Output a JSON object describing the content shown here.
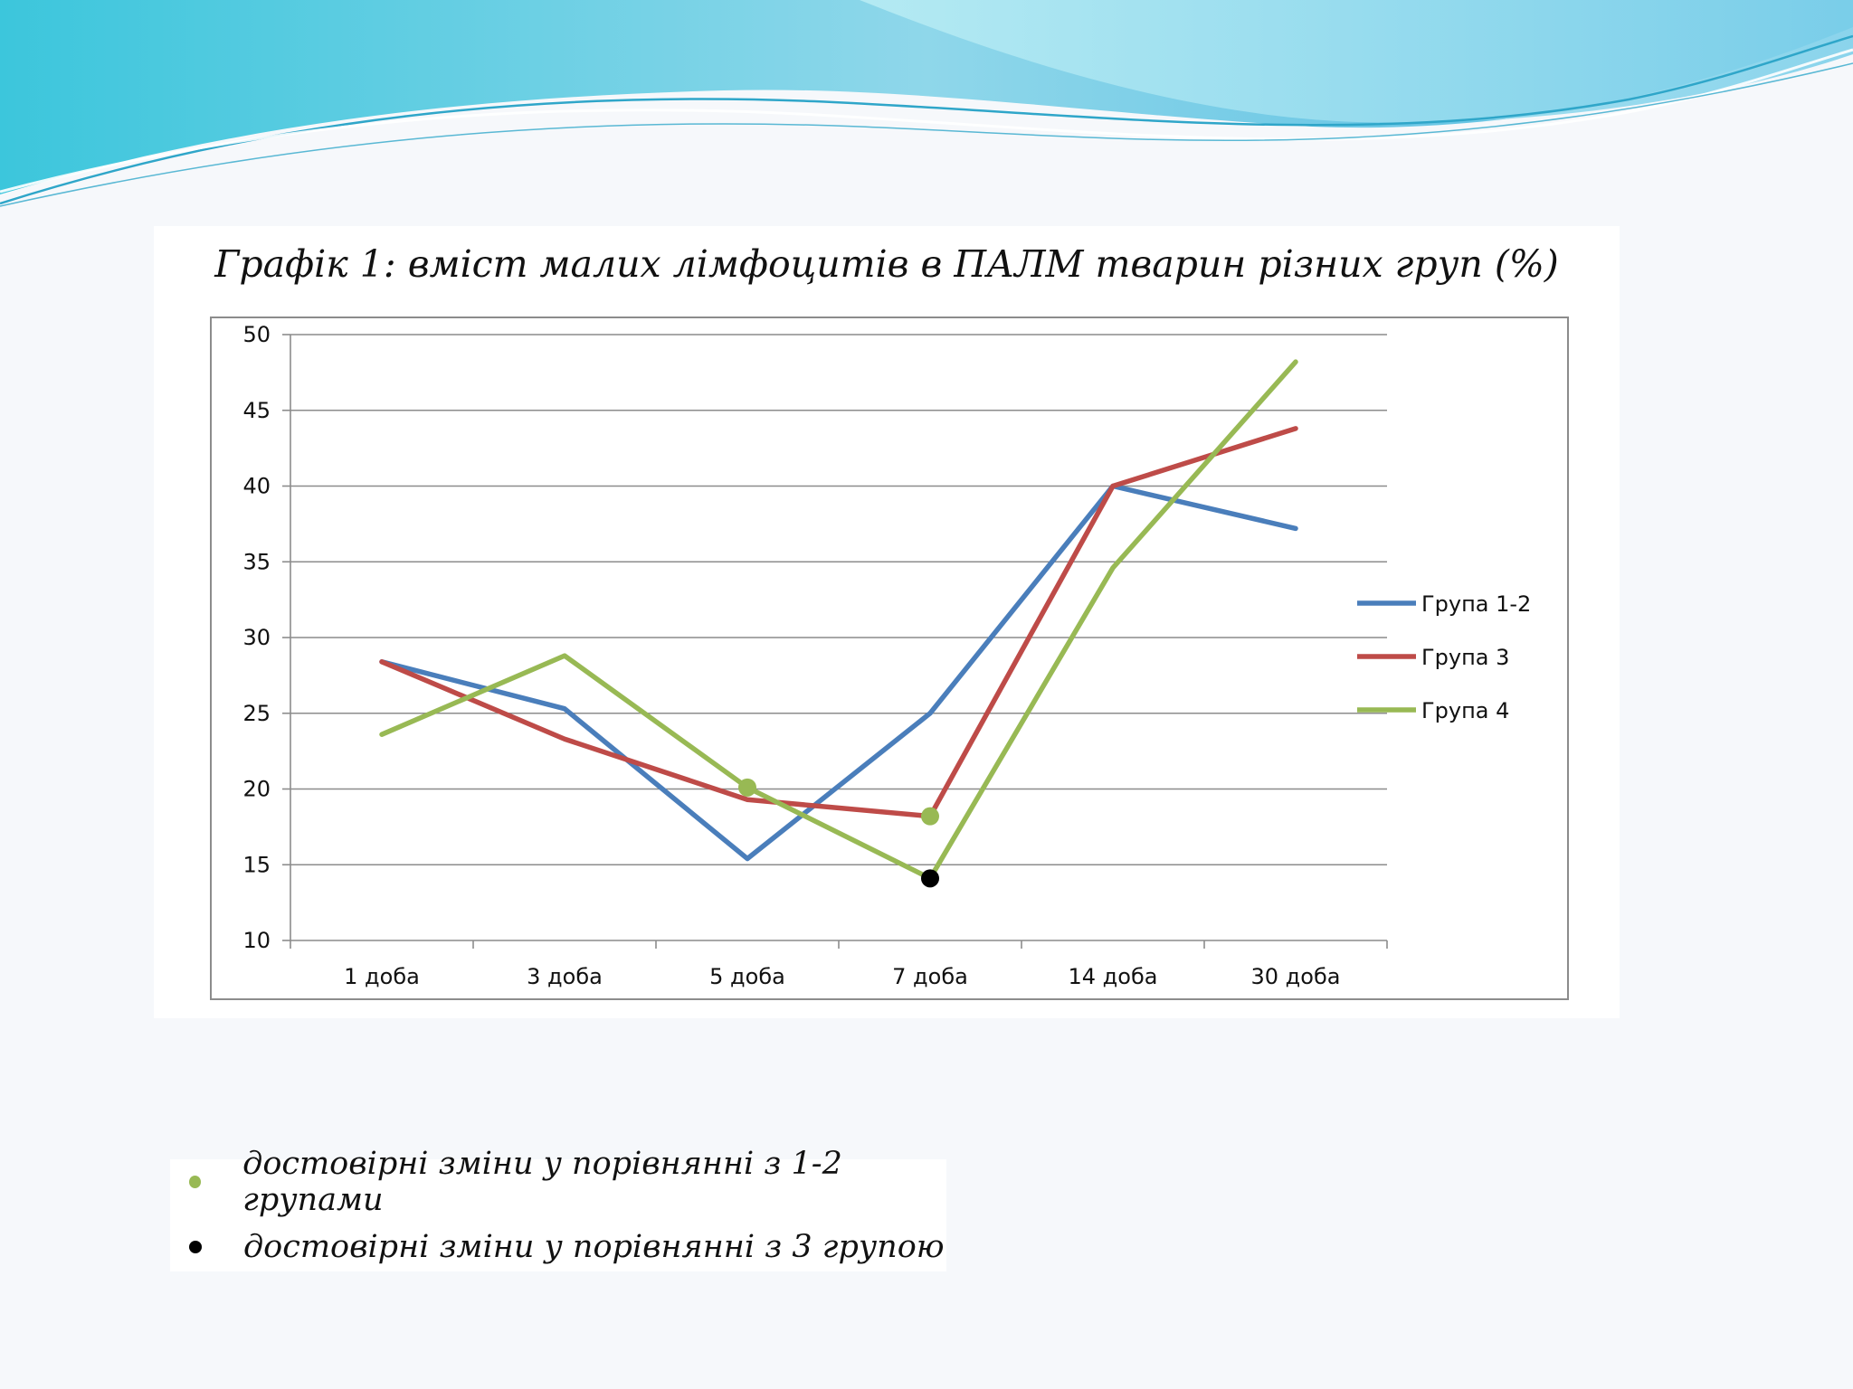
{
  "chart_data": {
    "type": "line",
    "title": "Графік 1: вміст малих лімфоцитів в ПАЛМ тварин різних груп (%)",
    "xlabel": "",
    "ylabel": "",
    "categories": [
      "1 доба",
      "3 доба",
      "5 доба",
      "7 доба",
      "14 доба",
      "30 доба"
    ],
    "ylim": [
      10,
      50
    ],
    "yticks": [
      10,
      15,
      20,
      25,
      30,
      35,
      40,
      45,
      50
    ],
    "grid": true,
    "legend_position": "right",
    "series": [
      {
        "name": "Група 1-2",
        "color": "#4a7ebb",
        "values": [
          28.4,
          25.3,
          15.4,
          25.0,
          40.0,
          37.2
        ]
      },
      {
        "name": "Група 3",
        "color": "#be4b48",
        "values": [
          28.4,
          23.3,
          19.3,
          18.2,
          40.0,
          43.8
        ]
      },
      {
        "name": "Група 4",
        "color": "#98b954",
        "values": [
          23.6,
          28.8,
          20.1,
          14.1,
          34.6,
          48.2
        ]
      }
    ],
    "markers": [
      {
        "series": "Група 4",
        "category": "5 доба",
        "value": 20.1,
        "color": "#98b954",
        "meaning": "green"
      },
      {
        "series": "Група 3",
        "category": "7 доба",
        "value": 18.2,
        "color": "#98b954",
        "meaning": "green"
      },
      {
        "series": "Група 4",
        "category": "7 доба",
        "value": 14.1,
        "color": "#000000",
        "meaning": "black"
      }
    ]
  },
  "notes": [
    {
      "text": "достовірні зміни у порівнянні з 1-2 групами",
      "color": "#98b954"
    },
    {
      "text": "достовірні зміни у порівнянні з 3 групою",
      "color": "#000000"
    }
  ]
}
